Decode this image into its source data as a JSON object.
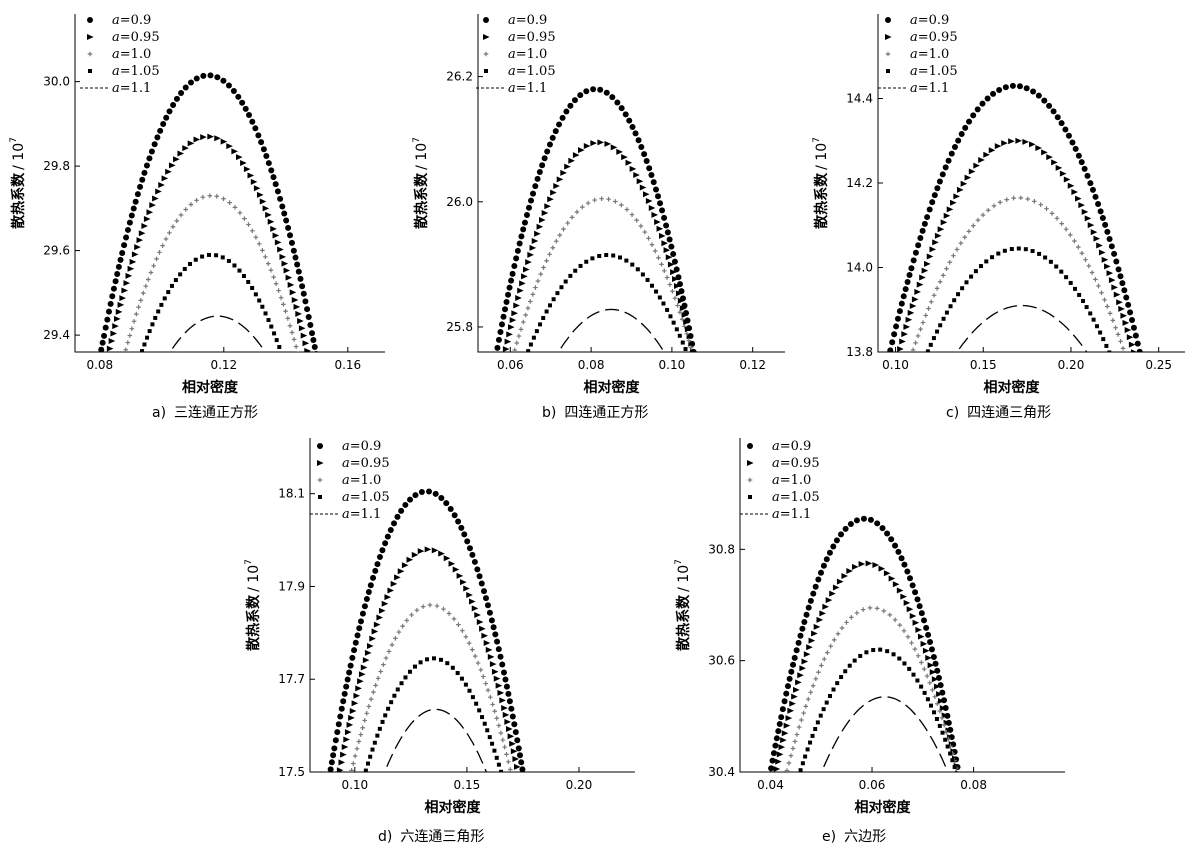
{
  "legend_prefix": "a",
  "series_markers": [
    "circle",
    "triangle",
    "plus",
    "square",
    "dash"
  ],
  "chart_data": [
    {
      "type": "scatter",
      "caption_letter": "a)",
      "caption": "三连通正方形",
      "xlabel": "相对密度",
      "ylabel": "散热系数",
      "ylabel_unit": "/ 10",
      "ylabel_exp": "7",
      "xlim": [
        0.072,
        0.172
      ],
      "ylim": [
        29.36,
        30.16
      ],
      "xticks": [
        0.08,
        0.12,
        0.16
      ],
      "xtick_labels": [
        "0.08",
        "0.12",
        "0.16"
      ],
      "yticks": [
        29.4,
        29.6,
        29.8,
        30.0
      ],
      "ytick_labels": [
        "29.4",
        "29.6",
        "29.8",
        "30.0"
      ],
      "series": [
        {
          "name": "=0.9",
          "peak_x": 0.115,
          "peak_y": 30.015,
          "x_end": 0.0795
        },
        {
          "name": "=0.95",
          "peak_x": 0.115,
          "peak_y": 29.87,
          "x_end": 0.082
        },
        {
          "name": "=1.0",
          "peak_x": 0.116,
          "peak_y": 29.73,
          "x_end": 0.087
        },
        {
          "name": "=1.05",
          "peak_x": 0.116,
          "peak_y": 29.59,
          "x_end": 0.092
        },
        {
          "name": "=1.1",
          "peak_x": 0.118,
          "peak_y": 29.445,
          "x_end": 0.1
        }
      ]
    },
    {
      "type": "scatter",
      "caption_letter": "b)",
      "caption": "四连通正方形",
      "xlabel": "相对密度",
      "ylabel": "散热系数",
      "ylabel_unit": "/ 10",
      "ylabel_exp": "7",
      "xlim": [
        0.052,
        0.128
      ],
      "ylim": [
        25.76,
        26.3
      ],
      "xticks": [
        0.06,
        0.08,
        0.1,
        0.12
      ],
      "xtick_labels": [
        "0.06",
        "0.08",
        "0.10",
        "0.12"
      ],
      "yticks": [
        25.8,
        26.0,
        26.2
      ],
      "ytick_labels": [
        "25.8",
        "26.0",
        "26.2"
      ],
      "series": [
        {
          "name": "=0.9",
          "peak_x": 0.081,
          "peak_y": 26.18,
          "x_end": 0.056
        },
        {
          "name": "=0.95",
          "peak_x": 0.082,
          "peak_y": 26.095,
          "x_end": 0.058
        },
        {
          "name": "=1.0",
          "peak_x": 0.083,
          "peak_y": 26.005,
          "x_end": 0.06
        },
        {
          "name": "=1.05",
          "peak_x": 0.084,
          "peak_y": 25.915,
          "x_end": 0.063
        },
        {
          "name": "=1.1",
          "peak_x": 0.085,
          "peak_y": 25.828,
          "x_end": 0.07
        }
      ]
    },
    {
      "type": "scatter",
      "caption_letter": "c)",
      "caption": "四连通三角形",
      "xlabel": "相对密度",
      "ylabel": "散热系数",
      "ylabel_unit": "/ 10",
      "ylabel_exp": "7",
      "xlim": [
        0.09,
        0.265
      ],
      "ylim": [
        13.8,
        14.6
      ],
      "xticks": [
        0.1,
        0.15,
        0.2,
        0.25
      ],
      "xtick_labels": [
        "0.10",
        "0.15",
        "0.20",
        "0.25"
      ],
      "yticks": [
        13.8,
        14.0,
        14.2,
        14.4
      ],
      "ytick_labels": [
        "13.8",
        "14.0",
        "14.2",
        "14.4"
      ],
      "series": [
        {
          "name": "=0.9",
          "peak_x": 0.168,
          "peak_y": 14.43,
          "x_end": 0.095
        },
        {
          "name": "=0.95",
          "peak_x": 0.169,
          "peak_y": 14.3,
          "x_end": 0.1
        },
        {
          "name": "=1.0",
          "peak_x": 0.17,
          "peak_y": 14.165,
          "x_end": 0.107
        },
        {
          "name": "=1.05",
          "peak_x": 0.17,
          "peak_y": 14.045,
          "x_end": 0.115
        },
        {
          "name": "=1.1",
          "peak_x": 0.172,
          "peak_y": 13.91,
          "x_end": 0.13
        }
      ]
    },
    {
      "type": "scatter",
      "caption_letter": "d)",
      "caption": "六连通三角形",
      "xlabel": "相对密度",
      "ylabel": "散热系数",
      "ylabel_unit": "/ 10",
      "ylabel_exp": "7",
      "xlim": [
        0.08,
        0.225
      ],
      "ylim": [
        17.5,
        18.22
      ],
      "xticks": [
        0.1,
        0.15,
        0.2
      ],
      "xtick_labels": [
        "0.10",
        "0.15",
        "0.20"
      ],
      "yticks": [
        17.5,
        17.7,
        17.9,
        18.1
      ],
      "ytick_labels": [
        "17.5",
        "17.7",
        "17.9",
        "18.1"
      ],
      "series": [
        {
          "name": "=0.9",
          "peak_x": 0.132,
          "peak_y": 18.105,
          "x_end": 0.088
        },
        {
          "name": "=0.95",
          "peak_x": 0.133,
          "peak_y": 17.98,
          "x_end": 0.092
        },
        {
          "name": "=1.0",
          "peak_x": 0.134,
          "peak_y": 17.86,
          "x_end": 0.097
        },
        {
          "name": "=1.05",
          "peak_x": 0.135,
          "peak_y": 17.745,
          "x_end": 0.103
        },
        {
          "name": "=1.1",
          "peak_x": 0.136,
          "peak_y": 17.635,
          "x_end": 0.111
        }
      ]
    },
    {
      "type": "scatter",
      "caption_letter": "e)",
      "caption": "六边形",
      "xlabel": "相对密度",
      "ylabel": "散热系数",
      "ylabel_unit": "/ 10",
      "ylabel_exp": "7",
      "xlim": [
        0.034,
        0.098
      ],
      "ylim": [
        30.4,
        31.0
      ],
      "xticks": [
        0.04,
        0.06,
        0.08
      ],
      "xtick_labels": [
        "0.04",
        "0.06",
        "0.08"
      ],
      "yticks": [
        30.4,
        30.6,
        30.8
      ],
      "ytick_labels": [
        "30.4",
        "30.6",
        "30.8"
      ],
      "series": [
        {
          "name": "=0.9",
          "peak_x": 0.0585,
          "peak_y": 30.855,
          "x_end": 0.0395
        },
        {
          "name": "=0.95",
          "peak_x": 0.059,
          "peak_y": 30.775,
          "x_end": 0.0405
        },
        {
          "name": "=1.0",
          "peak_x": 0.06,
          "peak_y": 30.695,
          "x_end": 0.0425
        },
        {
          "name": "=1.05",
          "peak_x": 0.0612,
          "peak_y": 30.62,
          "x_end": 0.045
        },
        {
          "name": "=1.1",
          "peak_x": 0.0625,
          "peak_y": 30.535,
          "x_end": 0.049
        }
      ]
    }
  ]
}
